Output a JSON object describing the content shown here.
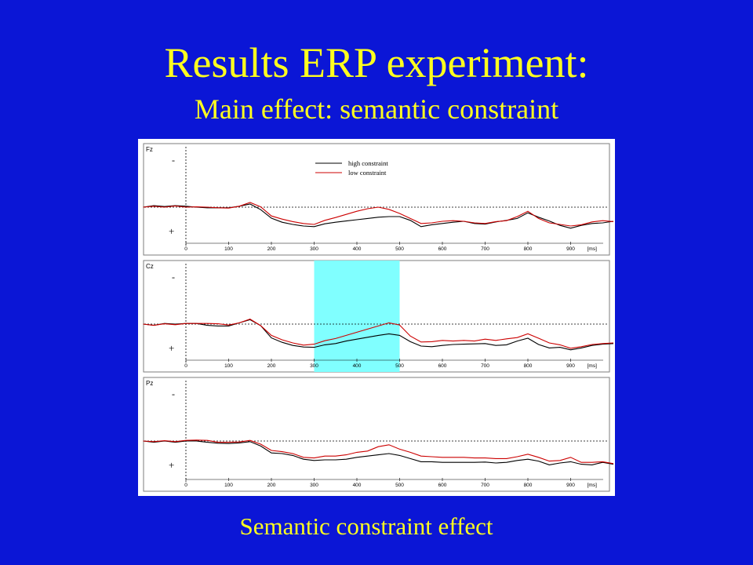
{
  "slide": {
    "title": "Results ERP experiment:",
    "subtitle": "Main effect: semantic constraint",
    "caption": "Semantic constraint effect"
  },
  "colors": {
    "background": "#0b16d6",
    "title": "#ffff1f",
    "high_constraint": "#000000",
    "low_constraint": "#cc0000",
    "highlight": "#80ffff"
  },
  "chart_data": [
    {
      "type": "line",
      "panel": "Fz",
      "polarity_labels": [
        "-",
        "+"
      ],
      "x_ticks": [
        "0",
        "100",
        "200",
        "300",
        "400",
        "500",
        "600",
        "700",
        "800",
        "900",
        "[ms]"
      ],
      "xlim": [
        -100,
        1000
      ],
      "legend": {
        "position": "top-center",
        "entries": [
          "high constraint",
          "low constraint"
        ]
      },
      "x": [
        -100,
        -75,
        -50,
        -25,
        0,
        25,
        50,
        75,
        100,
        125,
        150,
        175,
        200,
        225,
        250,
        275,
        300,
        325,
        350,
        375,
        400,
        425,
        450,
        475,
        500,
        525,
        550,
        575,
        600,
        625,
        650,
        675,
        700,
        725,
        750,
        775,
        800,
        825,
        850,
        875,
        900,
        925,
        950,
        975,
        1000
      ],
      "series": [
        {
          "name": "high constraint",
          "color": "#000000",
          "values": [
            0.0,
            0.5,
            0.2,
            0.5,
            0.3,
            0.0,
            -0.2,
            -0.2,
            -0.2,
            0.3,
            1.0,
            -0.8,
            -3.5,
            -4.8,
            -5.5,
            -6.0,
            -6.2,
            -5.3,
            -4.8,
            -4.4,
            -4.0,
            -3.6,
            -3.2,
            -3.0,
            -3.0,
            -4.2,
            -6.2,
            -5.6,
            -5.2,
            -4.8,
            -4.5,
            -5.2,
            -5.4,
            -4.7,
            -4.2,
            -3.6,
            -1.8,
            -3.2,
            -4.4,
            -5.8,
            -6.7,
            -5.8,
            -5.2,
            -5.0,
            -4.5
          ]
        },
        {
          "name": "low constraint",
          "color": "#cc0000",
          "values": [
            0.0,
            0.3,
            0.0,
            0.4,
            0.0,
            0.1,
            0.0,
            -0.2,
            -0.3,
            0.3,
            1.5,
            0.1,
            -2.8,
            -3.8,
            -4.6,
            -5.2,
            -5.5,
            -4.2,
            -3.3,
            -2.3,
            -1.3,
            -0.5,
            0.0,
            -0.7,
            -2.0,
            -3.6,
            -5.2,
            -5.0,
            -4.5,
            -4.3,
            -4.5,
            -5.0,
            -5.2,
            -4.6,
            -4.3,
            -3.0,
            -1.3,
            -3.6,
            -5.0,
            -5.5,
            -6.0,
            -5.6,
            -4.7,
            -4.3,
            -4.6
          ]
        }
      ]
    },
    {
      "type": "line",
      "panel": "Cz",
      "polarity_labels": [
        "-",
        "+"
      ],
      "x_ticks": [
        "0",
        "100",
        "200",
        "300",
        "400",
        "500",
        "600",
        "700",
        "800",
        "900",
        "[ms]"
      ],
      "xlim": [
        -100,
        1000
      ],
      "highlight_window": [
        300,
        500
      ],
      "x": [
        -100,
        -75,
        -50,
        -25,
        0,
        25,
        50,
        75,
        100,
        125,
        150,
        175,
        200,
        225,
        250,
        275,
        300,
        325,
        350,
        375,
        400,
        425,
        450,
        475,
        500,
        525,
        550,
        575,
        600,
        625,
        650,
        675,
        700,
        725,
        750,
        775,
        800,
        825,
        850,
        875,
        900,
        925,
        950,
        975,
        1000
      ],
      "series": [
        {
          "name": "high constraint",
          "color": "#000000",
          "values": [
            0.0,
            -0.4,
            0.2,
            0.0,
            0.2,
            0.2,
            -0.4,
            -0.6,
            -0.6,
            0.4,
            1.4,
            -0.5,
            -4.4,
            -5.8,
            -6.8,
            -7.3,
            -7.4,
            -6.6,
            -6.2,
            -5.4,
            -4.8,
            -4.2,
            -3.6,
            -3.1,
            -3.6,
            -5.6,
            -7.0,
            -7.2,
            -6.8,
            -6.5,
            -6.4,
            -6.3,
            -6.2,
            -6.8,
            -6.6,
            -5.4,
            -4.5,
            -6.5,
            -7.6,
            -7.4,
            -8.2,
            -7.6,
            -6.8,
            -6.4,
            -6.2
          ]
        },
        {
          "name": "low constraint",
          "color": "#cc0000",
          "values": [
            0.0,
            -0.4,
            0.1,
            -0.2,
            0.2,
            0.2,
            0.2,
            0.1,
            -0.3,
            0.4,
            1.6,
            -0.5,
            -3.6,
            -5.0,
            -6.0,
            -6.7,
            -6.4,
            -5.3,
            -4.6,
            -3.6,
            -2.6,
            -1.6,
            -0.6,
            0.4,
            -0.3,
            -3.8,
            -5.7,
            -5.6,
            -5.2,
            -5.4,
            -5.2,
            -5.4,
            -4.8,
            -5.2,
            -4.7,
            -4.3,
            -3.1,
            -4.5,
            -6.0,
            -6.6,
            -7.7,
            -7.2,
            -6.5,
            -6.2,
            -6.0
          ]
        }
      ]
    },
    {
      "type": "line",
      "panel": "Pz",
      "polarity_labels": [
        "-",
        "+"
      ],
      "x_ticks": [
        "0",
        "100",
        "200",
        "300",
        "400",
        "500",
        "600",
        "700",
        "800",
        "900",
        "[ms]"
      ],
      "xlim": [
        -100,
        1000
      ],
      "x": [
        -100,
        -75,
        -50,
        -25,
        0,
        25,
        50,
        75,
        100,
        125,
        150,
        175,
        200,
        225,
        250,
        275,
        300,
        325,
        350,
        375,
        400,
        425,
        450,
        475,
        500,
        525,
        550,
        575,
        600,
        625,
        650,
        675,
        700,
        725,
        750,
        775,
        800,
        825,
        850,
        875,
        900,
        925,
        950,
        975,
        1000
      ],
      "series": [
        {
          "name": "high constraint",
          "color": "#000000",
          "values": [
            0.0,
            -0.4,
            0.0,
            -0.4,
            0.0,
            0.0,
            -0.4,
            -0.7,
            -0.8,
            -0.6,
            -0.2,
            -1.6,
            -3.8,
            -4.0,
            -4.6,
            -5.8,
            -6.2,
            -6.0,
            -6.0,
            -5.8,
            -5.2,
            -4.8,
            -4.4,
            -4.0,
            -4.6,
            -5.6,
            -6.6,
            -6.6,
            -6.8,
            -6.8,
            -6.8,
            -6.8,
            -6.7,
            -7.0,
            -6.8,
            -6.2,
            -5.8,
            -6.4,
            -7.6,
            -7.0,
            -6.6,
            -7.4,
            -7.6,
            -6.8,
            -7.4
          ]
        },
        {
          "name": "low constraint",
          "color": "#cc0000",
          "values": [
            0.0,
            -0.2,
            0.1,
            -0.2,
            0.2,
            0.3,
            0.2,
            -0.4,
            -0.4,
            -0.3,
            0.2,
            -1.0,
            -3.0,
            -3.4,
            -4.0,
            -5.2,
            -5.4,
            -4.8,
            -4.8,
            -4.4,
            -3.6,
            -3.2,
            -1.8,
            -1.2,
            -2.6,
            -3.6,
            -4.8,
            -5.0,
            -5.2,
            -5.2,
            -5.2,
            -5.4,
            -5.4,
            -5.6,
            -5.6,
            -5.0,
            -4.2,
            -5.2,
            -6.4,
            -6.2,
            -5.2,
            -6.8,
            -6.8,
            -6.6,
            -7.2
          ]
        }
      ]
    }
  ]
}
